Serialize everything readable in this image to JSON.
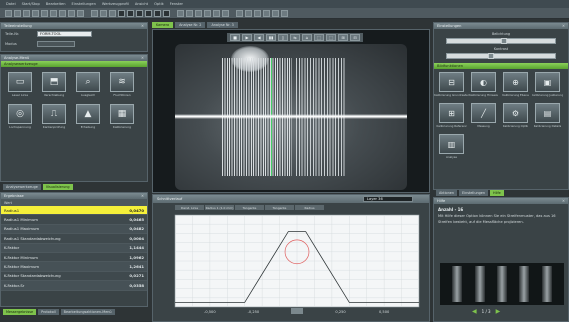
{
  "menu": [
    "Datei",
    "Start/Stop",
    "Bearbeiten",
    "Einstellungen",
    "Werkzeugprofil",
    "Ansicht",
    "Optik",
    "Fenster"
  ],
  "toolbar": {
    "button_count": 30
  },
  "part_panel": {
    "title": "Teileeinstellung",
    "part_label": "Teile-Nr.",
    "part_value": "FORM-TOOL",
    "mode_label": "Modus"
  },
  "tools_panel": {
    "title": "Analyse-Menü",
    "section": "Analysewerkzeuge",
    "tools": [
      {
        "label": "Laser Linie",
        "icon": "▭"
      },
      {
        "label": "Verschiebung",
        "icon": "⬒"
      },
      {
        "label": "Ausgleich",
        "icon": "⌕"
      },
      {
        "label": "Fluchtlinien",
        "icon": "≋"
      },
      {
        "label": "Lochspannung",
        "icon": "◎"
      },
      {
        "label": "Kantenprüfung",
        "icon": "⎍"
      },
      {
        "label": "Erhebung",
        "icon": "▲"
      },
      {
        "label": "Kalibrierung",
        "icon": "▦"
      }
    ]
  },
  "left_tabs": [
    "Analysewerkzeuge",
    "Visualisierung"
  ],
  "results_panel": {
    "title": "Ergebnisse",
    "header": "Wert",
    "rows": [
      {
        "name": "Radius1",
        "value": "0,0470",
        "selected": true
      },
      {
        "name": "Radius1 Minimum",
        "value": "0,0465",
        "selected": false
      },
      {
        "name": "Radius1 Maximum",
        "value": "0,0482",
        "selected": false
      },
      {
        "name": "Radius1 Standardabweichung",
        "value": "0,0004",
        "selected": false
      },
      {
        "name": "K-Faktor",
        "value": "1,1444",
        "selected": false
      },
      {
        "name": "K-Faktor Minimum",
        "value": "1,0962",
        "selected": false
      },
      {
        "name": "K-Faktor Maximum",
        "value": "1,2641",
        "selected": false
      },
      {
        "name": "K-Faktor Standardabweichung",
        "value": "0,0271",
        "selected": false
      },
      {
        "name": "K-Faktor-Sr",
        "value": "0,0358",
        "selected": false
      }
    ]
  },
  "bottom_left_tabs": [
    "Messergebnisse",
    "Protokoll",
    "Bearbeitungsaktionen-Menü"
  ],
  "view_tabs": [
    {
      "label": "Kamera",
      "active": true
    },
    {
      "label": "Analyse Nr. 2",
      "active": false
    },
    {
      "label": "Analyse Nr. 3",
      "active": false
    }
  ],
  "playbar": [
    "■",
    "▶",
    "◀",
    "▮▮",
    "▯",
    "⇆",
    "⌂",
    "⬚",
    "⬚",
    "⊞",
    "⊟"
  ],
  "profile_panel": {
    "title": "Schnittverlauf",
    "layer": "Layer 36",
    "tabs": [
      "Darst. Linie",
      "Radius 1 (1.0 mm)",
      "Tangente",
      "Tangente",
      "Radius"
    ]
  },
  "chart_data": {
    "type": "line",
    "title": "",
    "xlabel": "",
    "ylabel": "",
    "x_ticks": [
      "-0,500",
      "-0,250",
      "0,000",
      "0,250",
      "0,500"
    ],
    "xlim": [
      -0.7,
      0.7
    ],
    "ylim": [
      0,
      1
    ],
    "series": [
      {
        "values": [
          [
            -0.7,
            0.05
          ],
          [
            -0.3,
            0.05
          ],
          [
            -0.05,
            0.82
          ],
          [
            0.05,
            0.82
          ],
          [
            0.3,
            0.05
          ],
          [
            0.7,
            0.05
          ]
        ]
      }
    ],
    "circle": {
      "cx": 0.0,
      "cy": 0.6,
      "r": 0.13,
      "color": "#e06060"
    },
    "grid": true
  },
  "right_panel": {
    "title": "Einstellungen",
    "slider1_label": "Belichtung",
    "slider1_value": 0.5,
    "slider2_label": "Kontrast",
    "slider2_value": 0.38,
    "section": "Bildfunktionen",
    "tools": [
      {
        "label": "Kalibrierung Grundraster",
        "icon": "⊟"
      },
      {
        "label": "Kalibrierung Hinweis",
        "icon": "◐"
      },
      {
        "label": "Kalibrierung Ebene",
        "icon": "⊕"
      },
      {
        "label": "Kalibrierung Justierung",
        "icon": "▣"
      },
      {
        "label": "Kalibrierung Referenz",
        "icon": "⊞"
      },
      {
        "label": "Messung",
        "icon": "╱"
      },
      {
        "label": "Kalibrierung Optik",
        "icon": "⚙"
      },
      {
        "label": "Kalibrierung Details",
        "icon": "▤"
      },
      {
        "label": "Analyse",
        "icon": "▥"
      }
    ]
  },
  "right_tabs": [
    "Aktionen",
    "Einstellungen",
    "Hilfe"
  ],
  "help_panel": {
    "title": "Hilfe",
    "heading": "Anzahl - 16",
    "text": "Mit Hilfe dieser Option können Sie ein Streifenmuster, das aus 16 Streifen besteht, auf die Messfläche projizieren.",
    "page": "1 / 3"
  },
  "colors": {
    "accent_green": "#7ec34c",
    "selection_yellow": "#f5f03a",
    "panel": "#3a4346"
  }
}
